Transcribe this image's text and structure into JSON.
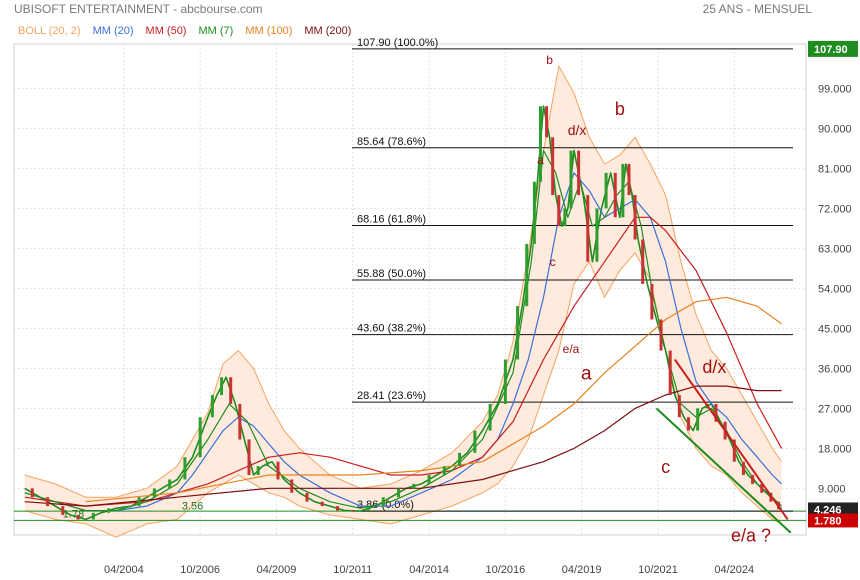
{
  "header": {
    "title": "UBISOFT ENTERTAINMENT - abcbourse.com",
    "period": "25 ANS - MENSUEL"
  },
  "legend": [
    {
      "label": "BOLL (20, 2)",
      "color": "#f4a460"
    },
    {
      "label": "MM (20)",
      "color": "#3a6fd8"
    },
    {
      "label": "MM (50)",
      "color": "#c81e1e"
    },
    {
      "label": "MM (7)",
      "color": "#1e8c1e"
    },
    {
      "label": "MM (100)",
      "color": "#e8821e"
    },
    {
      "label": "MM (200)",
      "color": "#7a1010"
    }
  ],
  "chart_data": {
    "type": "line",
    "x_ticks": [
      "04/2004",
      "10/2006",
      "04/2009",
      "10/2011",
      "04/2014",
      "10/2016",
      "04/2019",
      "10/2021",
      "04/2024"
    ],
    "y_ticks": [
      9.0,
      18.0,
      27.0,
      36.0,
      45.0,
      54.0,
      63.0,
      72.0,
      81.0,
      90.0,
      99.0
    ],
    "ylim": [
      -1.5,
      109
    ],
    "current_price": {
      "label": "107.90",
      "value": 107.9,
      "color": "#1e8c1e"
    },
    "last_price": {
      "label": "4.246",
      "value": 4.246,
      "color": "#222222"
    },
    "low_marker": {
      "label": "1.780",
      "value": 1.78,
      "color": "#cc0000"
    },
    "fibonacci": [
      {
        "label": "107.90  (100.0%)",
        "value": 107.9
      },
      {
        "label": "85.64  (78.6%)",
        "value": 85.64
      },
      {
        "label": "68.16  (61.8%)",
        "value": 68.16
      },
      {
        "label": "55.88  (50.0%)",
        "value": 55.88
      },
      {
        "label": "43.60  (38.2%)",
        "value": 43.6
      },
      {
        "label": "28.41  (23.6%)",
        "value": 28.41
      },
      {
        "label": "3.86  (0.0%)",
        "value": 3.86
      }
    ],
    "price_notes": [
      {
        "label": "1.78",
        "x": 2002.6,
        "y": 1.78
      },
      {
        "label": "3.56",
        "x": 2006.5,
        "y": 3.56
      }
    ],
    "support_lines": [
      {
        "value": 3.86,
        "color": "#1e8c1e"
      },
      {
        "value": 1.78,
        "color": "#1e8c1e"
      }
    ],
    "trendlines": [
      {
        "points": [
          [
            2022.3,
            38.0
          ],
          [
            2026.0,
            2.0
          ]
        ],
        "color": "#c81e1e"
      },
      {
        "points": [
          [
            2021.7,
            27.0
          ],
          [
            2026.1,
            -1.0
          ]
        ],
        "color": "#1e8c1e"
      }
    ],
    "wave_labels": [
      {
        "label": "b",
        "x": 2018.2,
        "y": 104.5,
        "size": 12
      },
      {
        "label": "a",
        "x": 2017.9,
        "y": 82.0,
        "size": 12
      },
      {
        "label": "d/x",
        "x": 2019.1,
        "y": 88.5,
        "size": 14
      },
      {
        "label": "b",
        "x": 2020.5,
        "y": 93.0,
        "size": 18
      },
      {
        "label": "c",
        "x": 2018.3,
        "y": 59.0,
        "size": 12
      },
      {
        "label": "e/a",
        "x": 2018.9,
        "y": 39.5,
        "size": 12
      },
      {
        "label": "a",
        "x": 2019.4,
        "y": 33.5,
        "size": 19
      },
      {
        "label": "d/x",
        "x": 2023.6,
        "y": 35.0,
        "size": 18
      },
      {
        "label": "c",
        "x": 2022.0,
        "y": 12.5,
        "size": 18
      },
      {
        "label": "e/a ?",
        "x": 2024.8,
        "y": -3.0,
        "size": 18
      }
    ],
    "series": [
      {
        "name": "Close",
        "color": "#1e8c1e",
        "x": [
          2001.0,
          2001.5,
          2002.0,
          2002.5,
          2003.0,
          2003.5,
          2004.0,
          2004.5,
          2005.0,
          2005.5,
          2006.0,
          2006.5,
          2007.0,
          2007.3,
          2007.6,
          2007.9,
          2008.2,
          2008.5,
          2008.8,
          2009.1,
          2009.5,
          2010.0,
          2010.5,
          2011.0,
          2011.5,
          2012.0,
          2012.5,
          2013.0,
          2013.5,
          2014.0,
          2014.5,
          2015.0,
          2015.5,
          2016.0,
          2016.5,
          2017.0,
          2017.3,
          2017.6,
          2017.8,
          2018.0,
          2018.2,
          2018.4,
          2018.6,
          2018.8,
          2019.0,
          2019.3,
          2019.6,
          2019.9,
          2020.2,
          2020.5,
          2020.7,
          2020.9,
          2021.1,
          2021.4,
          2021.7,
          2022.0,
          2022.3,
          2022.6,
          2022.9,
          2023.2,
          2023.5,
          2023.8,
          2024.1,
          2024.4,
          2024.7,
          2025.0,
          2025.3,
          2025.6,
          2025.8
        ],
        "y": [
          9,
          7,
          5,
          3,
          2,
          3.5,
          4.5,
          5,
          7,
          9,
          11,
          16,
          25,
          30,
          34,
          28,
          20,
          12,
          14,
          15,
          11,
          8,
          6,
          5,
          4,
          3.9,
          5,
          7,
          9,
          10,
          12,
          14,
          17,
          22,
          28,
          38,
          50,
          64,
          78,
          95,
          88,
          75,
          68,
          72,
          85,
          75,
          60,
          72,
          80,
          70,
          82,
          75,
          65,
          55,
          47,
          40,
          30,
          25,
          22,
          27,
          28,
          24,
          20,
          15,
          12,
          10,
          8,
          6,
          4.3
        ]
      },
      {
        "name": "MM (20)",
        "color": "#3a6fd8",
        "x": [
          2001.0,
          2002.0,
          2003.0,
          2004.0,
          2005.0,
          2006.0,
          2006.5,
          2007.0,
          2007.5,
          2008.0,
          2008.5,
          2009.0,
          2009.5,
          2010.0,
          2011.0,
          2012.0,
          2013.0,
          2014.0,
          2015.0,
          2016.0,
          2016.5,
          2017.0,
          2017.5,
          2018.0,
          2018.5,
          2019.0,
          2019.5,
          2020.0,
          2020.5,
          2021.0,
          2021.5,
          2022.0,
          2022.5,
          2023.0,
          2023.5,
          2024.0,
          2024.5,
          2025.0,
          2025.5,
          2025.8
        ],
        "y": [
          8,
          6,
          4,
          4,
          5,
          8,
          12,
          17,
          22,
          25,
          23,
          19,
          15,
          12,
          8,
          5,
          5,
          8,
          11,
          16,
          20,
          28,
          38,
          52,
          70,
          80,
          76,
          70,
          72,
          74,
          70,
          60,
          45,
          33,
          28,
          25,
          20,
          16,
          12,
          10
        ]
      },
      {
        "name": "MM (50)",
        "color": "#c81e1e",
        "x": [
          2001.0,
          2003.0,
          2005.0,
          2007.0,
          2009.0,
          2010.0,
          2011.0,
          2012.0,
          2013.0,
          2014.0,
          2015.0,
          2016.0,
          2017.0,
          2018.0,
          2019.0,
          2020.0,
          2021.0,
          2021.5,
          2022.0,
          2023.0,
          2024.0,
          2025.0,
          2025.8
        ],
        "y": [
          7,
          5,
          6,
          10,
          16,
          17,
          16,
          14,
          12,
          12,
          13,
          16,
          24,
          38,
          50,
          60,
          70,
          70,
          67,
          58,
          44,
          28,
          18
        ]
      },
      {
        "name": "MM (7)",
        "color": "#1e8c1e",
        "x": [
          2001.0,
          2002.0,
          2003.0,
          2004.0,
          2005.0,
          2006.0,
          2007.0,
          2007.7,
          2008.3,
          2009.0,
          2010.0,
          2011.0,
          2012.0,
          2013.0,
          2014.0,
          2015.0,
          2016.0,
          2017.0,
          2017.6,
          2018.0,
          2018.4,
          2018.8,
          2019.2,
          2019.6,
          2020.0,
          2020.4,
          2020.8,
          2021.2,
          2021.6,
          2022.0,
          2022.5,
          2023.0,
          2023.5,
          2024.0,
          2024.5,
          2025.0,
          2025.5,
          2025.8
        ],
        "y": [
          8,
          6,
          4,
          4,
          6,
          10,
          20,
          28,
          24,
          14,
          9,
          6,
          4.5,
          6,
          9,
          13,
          20,
          35,
          60,
          85,
          80,
          70,
          78,
          68,
          70,
          75,
          78,
          68,
          52,
          40,
          28,
          25,
          27,
          22,
          15,
          10,
          7,
          5
        ]
      },
      {
        "name": "MM (100)",
        "color": "#e8821e",
        "x": [
          2003.0,
          2006.0,
          2009.0,
          2012.0,
          2014.0,
          2016.0,
          2017.0,
          2018.0,
          2019.0,
          2020.0,
          2021.0,
          2022.0,
          2023.0,
          2024.0,
          2025.0,
          2025.8
        ],
        "y": [
          6,
          8,
          12,
          12,
          13,
          15,
          19,
          23,
          28,
          35,
          41,
          47,
          51,
          52,
          50,
          46
        ]
      },
      {
        "name": "MM (200)",
        "color": "#7a1010",
        "x": [
          2001.0,
          2003.0,
          2006.0,
          2009.0,
          2012.0,
          2014.0,
          2016.0,
          2018.0,
          2019.0,
          2020.0,
          2021.0,
          2022.0,
          2023.0,
          2024.0,
          2025.0,
          2025.8
        ],
        "y": [
          6,
          5,
          7,
          9,
          9,
          9,
          11,
          15,
          18,
          22,
          27,
          30,
          32,
          32,
          31,
          31
        ]
      },
      {
        "name": "BOLL (20, 2)",
        "color": "#f4a460",
        "x": [
          2001.0,
          2002.0,
          2003.0,
          2004.0,
          2005.0,
          2006.0,
          2007.0,
          2007.5,
          2008.0,
          2008.5,
          2009.0,
          2009.5,
          2010.0,
          2011.0,
          2012.0,
          2013.0,
          2014.0,
          2015.0,
          2016.0,
          2016.5,
          2017.0,
          2017.5,
          2018.0,
          2018.5,
          2019.0,
          2019.5,
          2020.0,
          2020.5,
          2021.0,
          2021.5,
          2022.0,
          2022.5,
          2023.0,
          2023.5,
          2024.0,
          2024.5,
          2025.0,
          2025.5,
          2025.8
        ],
        "upper": [
          12,
          10,
          7,
          7,
          9,
          14,
          26,
          37,
          40,
          36,
          28,
          22,
          18,
          12,
          9,
          10,
          13,
          17,
          24,
          30,
          42,
          62,
          85,
          104,
          98,
          88,
          82,
          84,
          88,
          82,
          75,
          60,
          48,
          40,
          36,
          30,
          24,
          18,
          15
        ],
        "lower": [
          4,
          2,
          1,
          -2,
          1,
          2,
          8,
          10,
          12,
          10,
          8,
          7,
          5,
          3,
          2,
          1,
          3,
          5,
          8,
          10,
          14,
          20,
          30,
          40,
          55,
          60,
          52,
          58,
          62,
          56,
          40,
          25,
          18,
          14,
          12,
          8,
          5,
          2,
          1
        ]
      }
    ]
  }
}
